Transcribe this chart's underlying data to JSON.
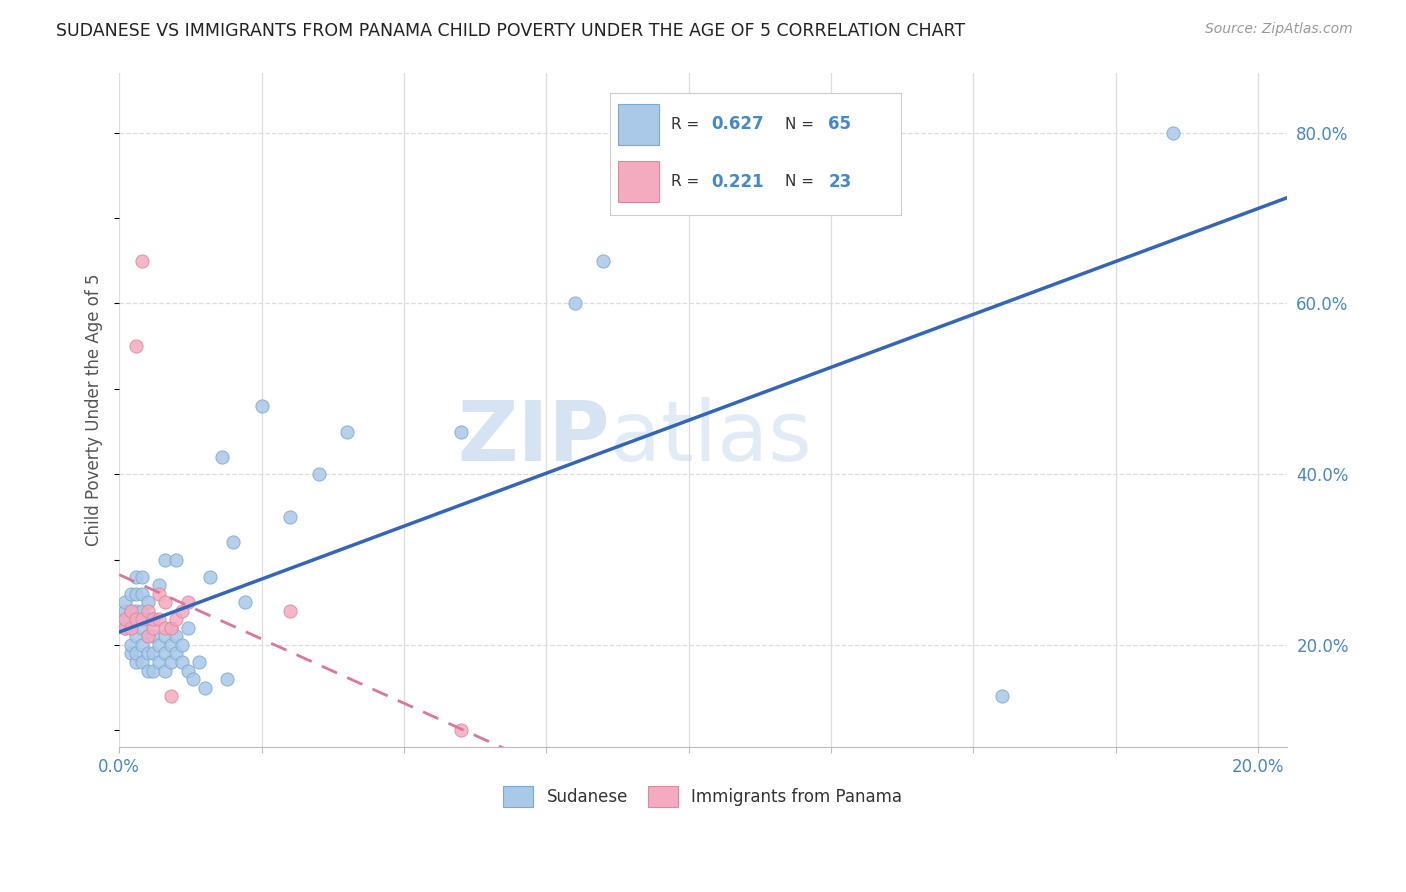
{
  "title": "SUDANESE VS IMMIGRANTS FROM PANAMA CHILD POVERTY UNDER THE AGE OF 5 CORRELATION CHART",
  "source": "Source: ZipAtlas.com",
  "ylabel": "Child Poverty Under the Age of 5",
  "xlim": [
    0.0,
    0.205
  ],
  "ylim": [
    0.08,
    0.87
  ],
  "xtick_positions": [
    0.0,
    0.025,
    0.05,
    0.075,
    0.1,
    0.125,
    0.15,
    0.175,
    0.2
  ],
  "yticks_right": [
    0.2,
    0.4,
    0.6,
    0.8
  ],
  "ytick_right_labels": [
    "20.0%",
    "40.0%",
    "60.0%",
    "80.0%"
  ],
  "background_color": "#ffffff",
  "grid_color": "#dddddd",
  "sudanese_color": "#aac8e8",
  "sudanese_edge_color": "#7aaad0",
  "panama_color": "#f4aabf",
  "panama_edge_color": "#dd88a0",
  "blue_line_color": "#3366bb",
  "pink_line_color": "#dd7799",
  "R_sudanese": 0.627,
  "N_sudanese": 65,
  "R_panama": 0.221,
  "N_panama": 23,
  "legend_label_sudanese": "Sudanese",
  "legend_label_panama": "Immigrants from Panama",
  "watermark_zip": "ZIP",
  "watermark_atlas": "atlas",
  "sudanese_x": [
    0.001,
    0.001,
    0.001,
    0.001,
    0.002,
    0.002,
    0.002,
    0.002,
    0.002,
    0.003,
    0.003,
    0.003,
    0.003,
    0.003,
    0.003,
    0.003,
    0.004,
    0.004,
    0.004,
    0.004,
    0.004,
    0.004,
    0.005,
    0.005,
    0.005,
    0.005,
    0.005,
    0.006,
    0.006,
    0.006,
    0.006,
    0.007,
    0.007,
    0.007,
    0.008,
    0.008,
    0.008,
    0.008,
    0.009,
    0.009,
    0.009,
    0.01,
    0.01,
    0.01,
    0.011,
    0.011,
    0.012,
    0.012,
    0.013,
    0.014,
    0.015,
    0.016,
    0.018,
    0.019,
    0.02,
    0.022,
    0.025,
    0.03,
    0.035,
    0.04,
    0.06,
    0.08,
    0.085,
    0.155,
    0.185
  ],
  "sudanese_y": [
    0.22,
    0.23,
    0.24,
    0.25,
    0.19,
    0.2,
    0.22,
    0.24,
    0.26,
    0.18,
    0.19,
    0.21,
    0.23,
    0.24,
    0.26,
    0.28,
    0.18,
    0.2,
    0.22,
    0.24,
    0.26,
    0.28,
    0.17,
    0.19,
    0.21,
    0.23,
    0.25,
    0.17,
    0.19,
    0.21,
    0.23,
    0.18,
    0.2,
    0.27,
    0.17,
    0.19,
    0.21,
    0.3,
    0.18,
    0.2,
    0.22,
    0.19,
    0.21,
    0.3,
    0.18,
    0.2,
    0.17,
    0.22,
    0.16,
    0.18,
    0.15,
    0.28,
    0.42,
    0.16,
    0.32,
    0.25,
    0.48,
    0.35,
    0.4,
    0.45,
    0.45,
    0.6,
    0.65,
    0.14,
    0.8
  ],
  "panama_x": [
    0.001,
    0.001,
    0.002,
    0.002,
    0.003,
    0.003,
    0.004,
    0.004,
    0.005,
    0.005,
    0.006,
    0.006,
    0.007,
    0.007,
    0.008,
    0.008,
    0.009,
    0.009,
    0.01,
    0.011,
    0.012,
    0.03,
    0.06
  ],
  "panama_y": [
    0.22,
    0.23,
    0.22,
    0.24,
    0.23,
    0.55,
    0.23,
    0.65,
    0.21,
    0.24,
    0.22,
    0.23,
    0.23,
    0.26,
    0.22,
    0.25,
    0.14,
    0.22,
    0.23,
    0.24,
    0.25,
    0.24,
    0.1
  ]
}
